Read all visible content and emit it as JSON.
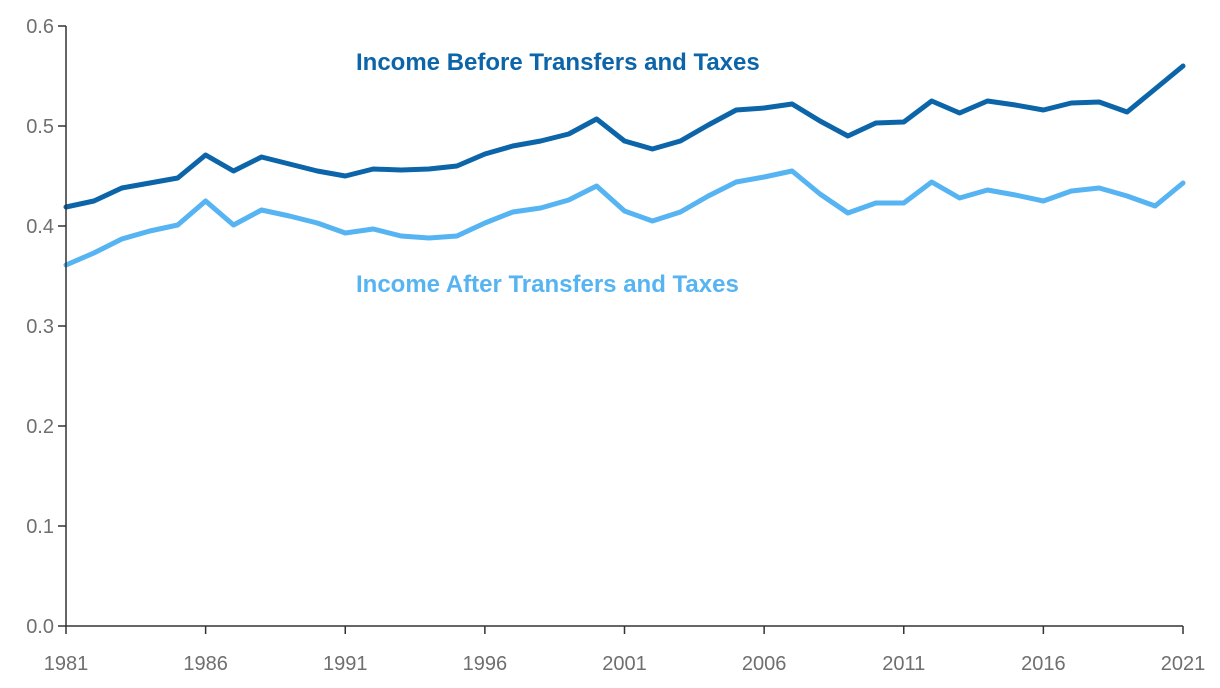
{
  "chart_data": {
    "type": "line",
    "title": "",
    "xlabel": "",
    "ylabel": "",
    "xlim": [
      1981,
      2021
    ],
    "ylim": [
      0,
      0.6
    ],
    "grid": false,
    "legend": "inline",
    "x_ticks": [
      "1981",
      "1986",
      "1991",
      "1996",
      "2001",
      "2006",
      "2011",
      "2016",
      "2021"
    ],
    "y_ticks": [
      "0.0",
      "0.1",
      "0.2",
      "0.3",
      "0.4",
      "0.5",
      "0.6"
    ],
    "x": [
      1981,
      1982,
      1983,
      1984,
      1985,
      1986,
      1987,
      1988,
      1989,
      1990,
      1991,
      1992,
      1993,
      1994,
      1995,
      1996,
      1997,
      1998,
      1999,
      2000,
      2001,
      2002,
      2003,
      2004,
      2005,
      2006,
      2007,
      2008,
      2009,
      2010,
      2011,
      2012,
      2013,
      2014,
      2015,
      2016,
      2017,
      2018,
      2019,
      2020,
      2021
    ],
    "series": [
      {
        "name": "Income Before Transfers and Taxes",
        "color": "#0b65a8",
        "values": [
          0.419,
          0.425,
          0.438,
          0.443,
          0.448,
          0.471,
          0.455,
          0.469,
          0.462,
          0.455,
          0.45,
          0.457,
          0.456,
          0.457,
          0.46,
          0.472,
          0.48,
          0.485,
          0.492,
          0.507,
          0.485,
          0.477,
          0.485,
          0.501,
          0.516,
          0.518,
          0.522,
          0.505,
          0.49,
          0.503,
          0.504,
          0.525,
          0.513,
          0.525,
          0.521,
          0.516,
          0.523,
          0.524,
          0.514,
          0.537,
          0.56
        ]
      },
      {
        "name": "Income After Transfers and Taxes",
        "color": "#56b4f2",
        "values": [
          0.361,
          0.373,
          0.387,
          0.395,
          0.401,
          0.425,
          0.401,
          0.416,
          0.41,
          0.403,
          0.393,
          0.397,
          0.39,
          0.388,
          0.39,
          0.403,
          0.414,
          0.418,
          0.426,
          0.44,
          0.415,
          0.405,
          0.414,
          0.43,
          0.444,
          0.449,
          0.455,
          0.432,
          0.413,
          0.423,
          0.423,
          0.444,
          0.428,
          0.436,
          0.431,
          0.425,
          0.435,
          0.438,
          0.43,
          0.42,
          0.443
        ]
      }
    ]
  }
}
